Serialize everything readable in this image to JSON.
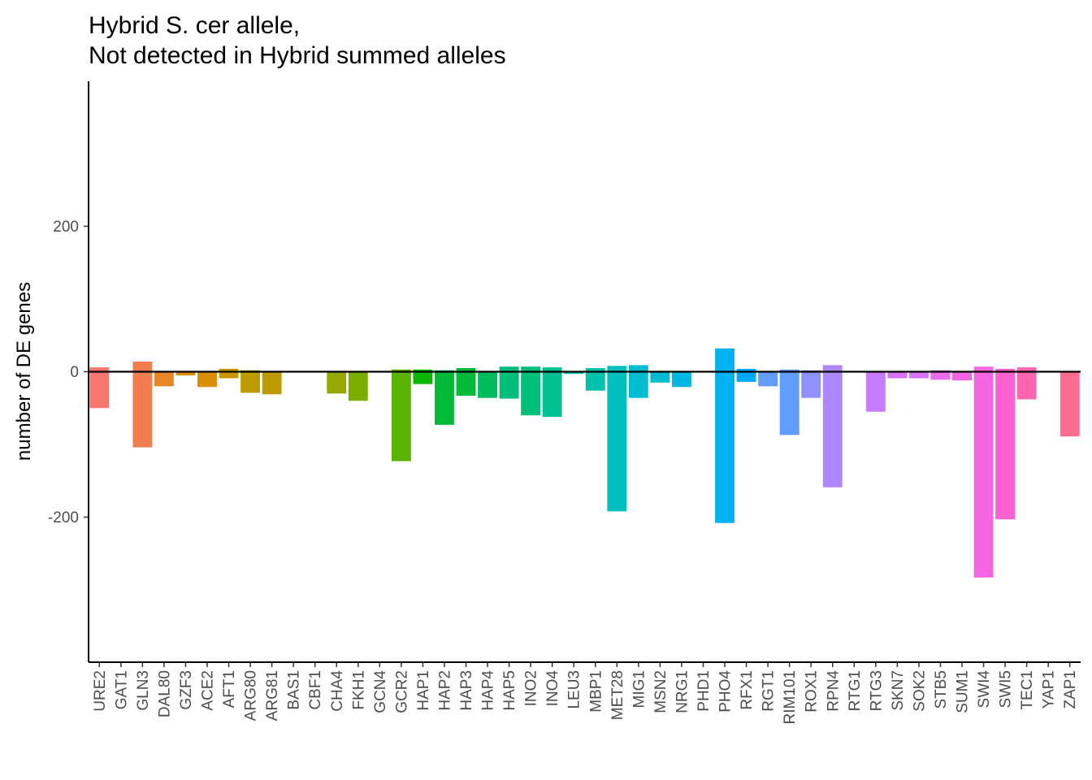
{
  "chart_data": {
    "type": "bar",
    "title_lines": [
      "Hybrid S. cer allele,",
      "Not detected in Hybrid summed alleles"
    ],
    "xlabel": "",
    "ylabel": "number of DE genes",
    "ylim": [
      -400,
      400
    ],
    "yticks": [
      -200,
      0,
      200
    ],
    "ytick_labels": [
      "-200",
      "0",
      "200"
    ],
    "zero_line": true,
    "grid": false,
    "legend": "none",
    "categories": [
      "URE2",
      "GAT1",
      "GLN3",
      "DAL80",
      "GZF3",
      "ACE2",
      "AFT1",
      "ARG80",
      "ARG81",
      "BAS1",
      "CBF1",
      "CHA4",
      "FKH1",
      "GCN4",
      "GCR2",
      "HAP1",
      "HAP2",
      "HAP3",
      "HAP4",
      "HAP5",
      "INO2",
      "INO4",
      "LEU3",
      "MBP1",
      "MET28",
      "MIG1",
      "MSN2",
      "NRG1",
      "PHD1",
      "PHO4",
      "RFX1",
      "RGT1",
      "RIM101",
      "ROX1",
      "RPN4",
      "RTG1",
      "RTG3",
      "SKN7",
      "SOK2",
      "STB5",
      "SUM1",
      "SWI4",
      "SWI5",
      "TEC1",
      "YAP1",
      "ZAP1"
    ],
    "series": [
      {
        "values": [
          6,
          0,
          14,
          0,
          0,
          0,
          4,
          2,
          0,
          0,
          0,
          0,
          0,
          0,
          3,
          3,
          2,
          5,
          0,
          7,
          7,
          6,
          0,
          5,
          8,
          9,
          0,
          0,
          0,
          32,
          4,
          0,
          3,
          2,
          9,
          0,
          0,
          0,
          0,
          2,
          0,
          7,
          4,
          6,
          0,
          0
        ]
      },
      {
        "values": [
          -50,
          0,
          -104,
          -20,
          -5,
          -21,
          -9,
          -29,
          -31,
          0,
          0,
          -30,
          -40,
          0,
          -123,
          -17,
          -73,
          -33,
          -36,
          -37,
          -60,
          -62,
          -3,
          -26,
          -192,
          -36,
          -15,
          -21,
          0,
          -208,
          -14,
          -20,
          -87,
          -36,
          -159,
          0,
          -55,
          -9,
          -9,
          -11,
          -12,
          -283,
          -203,
          -38,
          0,
          -89
        ]
      }
    ],
    "colors": [
      "#F8766D",
      "#F17D51",
      "#E88526",
      "#DB8E00",
      "#CD9600",
      "#BE9C00",
      "#ACA300",
      "#97A900",
      "#7CAE00",
      "#5AB300",
      "#0CB702",
      "#00BA38",
      "#00BD5C",
      "#00BF7A",
      "#00C094",
      "#00C1AA",
      "#00C0BE",
      "#00BDD1",
      "#00B8E3",
      "#00B2F3",
      "#00A9FF",
      "#619CFF",
      "#8F91FF",
      "#AE87FF",
      "#C77CFF",
      "#DB72FB",
      "#EA6AF1",
      "#F564E3",
      "#FD61D1",
      "#FF64B0",
      "#FF6C91"
    ]
  }
}
